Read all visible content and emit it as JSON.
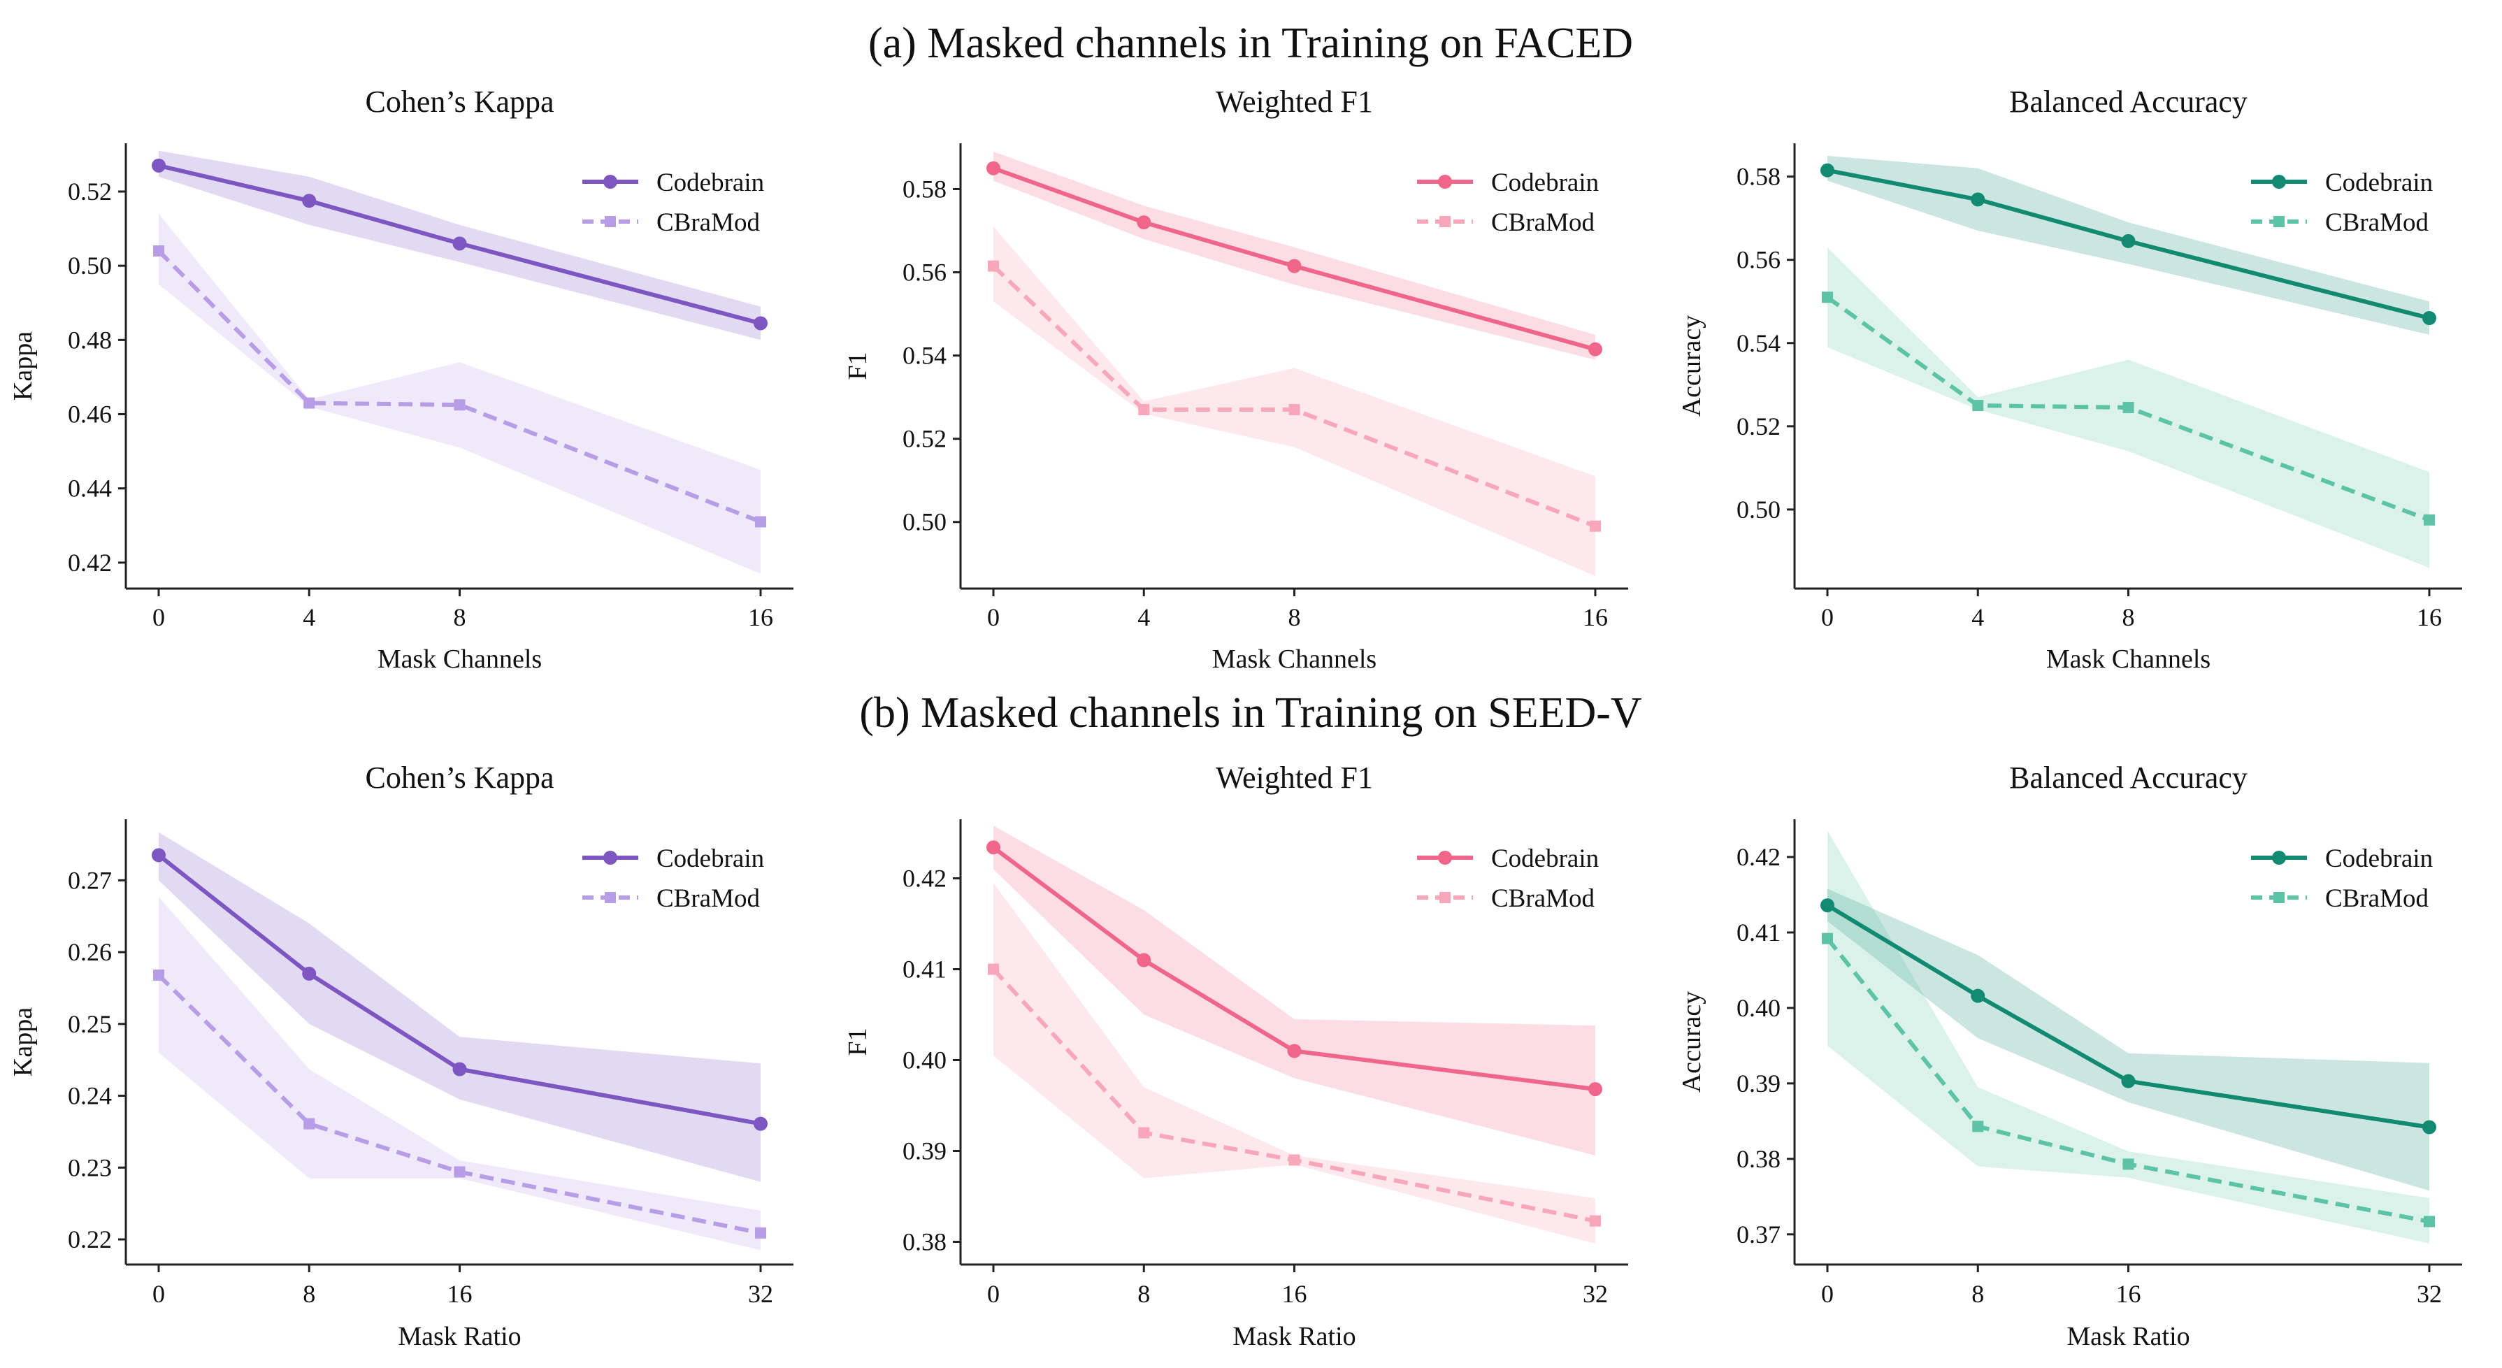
{
  "rows": [
    {
      "title": "(a) Masked channels in Training on FACED",
      "charts": [
        {
          "type": "line",
          "title": "Cohen’s Kappa",
          "xlabel": "Mask Channels",
          "ylabel": "Kappa",
          "x": [
            0,
            4,
            8,
            16
          ],
          "x_ticks": [
            "0",
            "4",
            "8",
            "16"
          ],
          "ylim": [
            0.413,
            0.533
          ],
          "y_ticks": [
            0.42,
            0.44,
            0.46,
            0.48,
            0.5,
            0.52
          ],
          "y_tick_labels": [
            "0.42",
            "0.44",
            "0.46",
            "0.48",
            "0.50",
            "0.52"
          ],
          "legend": "top-right",
          "series": [
            {
              "name": "Codebrain",
              "values": [
                0.527,
                0.5175,
                0.506,
                0.4845
              ],
              "lower": [
                0.524,
                0.511,
                0.501,
                0.48
              ],
              "upper": [
                0.531,
                0.524,
                0.511,
                0.489
              ],
              "color": "#7d56c2",
              "band_color": "#7d56c2",
              "band_opacity": 0.22,
              "style": "solid",
              "marker": "circle"
            },
            {
              "name": "CBraMod",
              "values": [
                0.504,
                0.463,
                0.4625,
                0.431
              ],
              "lower": [
                0.495,
                0.462,
                0.451,
                0.417
              ],
              "upper": [
                0.514,
                0.464,
                0.474,
                0.445
              ],
              "color": "#b69de6",
              "band_color": "#b69de6",
              "band_opacity": 0.22,
              "style": "dashed",
              "marker": "square"
            }
          ]
        },
        {
          "type": "line",
          "title": "Weighted F1",
          "xlabel": "Mask Channels",
          "ylabel": "F1",
          "x": [
            0,
            4,
            8,
            16
          ],
          "x_ticks": [
            "0",
            "4",
            "8",
            "16"
          ],
          "ylim": [
            0.484,
            0.591
          ],
          "y_ticks": [
            0.5,
            0.52,
            0.54,
            0.56,
            0.58
          ],
          "y_tick_labels": [
            "0.50",
            "0.52",
            "0.54",
            "0.56",
            "0.58"
          ],
          "legend": "top-right",
          "series": [
            {
              "name": "Codebrain",
              "values": [
                0.585,
                0.572,
                0.5615,
                0.5415
              ],
              "lower": [
                0.582,
                0.568,
                0.557,
                0.539
              ],
              "upper": [
                0.589,
                0.576,
                0.566,
                0.545
              ],
              "color": "#f0668b",
              "band_color": "#f0668b",
              "band_opacity": 0.22,
              "style": "solid",
              "marker": "circle"
            },
            {
              "name": "CBraMod",
              "values": [
                0.5615,
                0.527,
                0.527,
                0.499
              ],
              "lower": [
                0.553,
                0.526,
                0.518,
                0.487
              ],
              "upper": [
                0.571,
                0.529,
                0.537,
                0.511
              ],
              "color": "#f8a6ba",
              "band_color": "#f8a6ba",
              "band_opacity": 0.26,
              "style": "dashed",
              "marker": "square"
            }
          ]
        },
        {
          "type": "line",
          "title": "Balanced Accuracy",
          "xlabel": "Mask Channels",
          "ylabel": "Accuracy",
          "x": [
            0,
            4,
            8,
            16
          ],
          "x_ticks": [
            "0",
            "4",
            "8",
            "16"
          ],
          "ylim": [
            0.481,
            0.588
          ],
          "y_ticks": [
            0.5,
            0.52,
            0.54,
            0.56,
            0.58
          ],
          "y_tick_labels": [
            "0.50",
            "0.52",
            "0.54",
            "0.56",
            "0.58"
          ],
          "legend": "top-right",
          "series": [
            {
              "name": "Codebrain",
              "values": [
                0.5815,
                0.5745,
                0.5645,
                0.546
              ],
              "lower": [
                0.579,
                0.567,
                0.559,
                0.542
              ],
              "upper": [
                0.585,
                0.582,
                0.569,
                0.55
              ],
              "color": "#128a72",
              "band_color": "#128a72",
              "band_opacity": 0.22,
              "style": "solid",
              "marker": "circle"
            },
            {
              "name": "CBraMod",
              "values": [
                0.551,
                0.525,
                0.5245,
                0.4975
              ],
              "lower": [
                0.539,
                0.524,
                0.514,
                0.486
              ],
              "upper": [
                0.563,
                0.527,
                0.536,
                0.509
              ],
              "color": "#5cc3a6",
              "band_color": "#5cc3a6",
              "band_opacity": 0.22,
              "style": "dashed",
              "marker": "square"
            }
          ]
        }
      ]
    },
    {
      "title": "(b) Masked channels in Training on SEED-V",
      "charts": [
        {
          "type": "line",
          "title": "Cohen’s Kappa",
          "xlabel": "Mask Ratio",
          "ylabel": "Kappa",
          "x": [
            0,
            8,
            16,
            32
          ],
          "x_ticks": [
            "0",
            "8",
            "16",
            "32"
          ],
          "ylim": [
            0.2165,
            0.2785
          ],
          "y_ticks": [
            0.22,
            0.23,
            0.24,
            0.25,
            0.26,
            0.27
          ],
          "y_tick_labels": [
            "0.22",
            "0.23",
            "0.24",
            "0.25",
            "0.26",
            "0.27"
          ],
          "legend": "top-right",
          "series": [
            {
              "name": "Codebrain",
              "values": [
                0.2735,
                0.257,
                0.2437,
                0.2361
              ],
              "lower": [
                0.27,
                0.25,
                0.2395,
                0.228
              ],
              "upper": [
                0.2767,
                0.264,
                0.2482,
                0.2445
              ],
              "color": "#7d56c2",
              "band_color": "#7d56c2",
              "band_opacity": 0.22,
              "style": "solid",
              "marker": "circle"
            },
            {
              "name": "CBraMod",
              "values": [
                0.2568,
                0.2361,
                0.2294,
                0.2209
              ],
              "lower": [
                0.246,
                0.2285,
                0.2285,
                0.2185
              ],
              "upper": [
                0.2677,
                0.2437,
                0.231,
                0.224
              ],
              "color": "#b69de6",
              "band_color": "#b69de6",
              "band_opacity": 0.22,
              "style": "dashed",
              "marker": "square"
            }
          ]
        },
        {
          "type": "line",
          "title": "Weighted F1",
          "xlabel": "Mask Ratio",
          "ylabel": "F1",
          "x": [
            0,
            8,
            16,
            32
          ],
          "x_ticks": [
            "0",
            "8",
            "16",
            "32"
          ],
          "ylim": [
            0.3775,
            0.4265
          ],
          "y_ticks": [
            0.38,
            0.39,
            0.4,
            0.41,
            0.42
          ],
          "y_tick_labels": [
            "0.38",
            "0.39",
            "0.40",
            "0.41",
            "0.42"
          ],
          "legend": "top-right",
          "series": [
            {
              "name": "Codebrain",
              "values": [
                0.4234,
                0.411,
                0.401,
                0.3968
              ],
              "lower": [
                0.421,
                0.405,
                0.398,
                0.3895
              ],
              "upper": [
                0.4258,
                0.4165,
                0.4045,
                0.4038
              ],
              "color": "#f0668b",
              "band_color": "#f0668b",
              "band_opacity": 0.22,
              "style": "solid",
              "marker": "circle"
            },
            {
              "name": "CBraMod",
              "values": [
                0.41,
                0.392,
                0.389,
                0.3823
              ],
              "lower": [
                0.4005,
                0.387,
                0.3885,
                0.3798
              ],
              "upper": [
                0.4195,
                0.397,
                0.3895,
                0.3848
              ],
              "color": "#f8a6ba",
              "band_color": "#f8a6ba",
              "band_opacity": 0.26,
              "style": "dashed",
              "marker": "square"
            }
          ]
        },
        {
          "type": "line",
          "title": "Balanced Accuracy",
          "xlabel": "Mask Ratio",
          "ylabel": "Accuracy",
          "x": [
            0,
            8,
            16,
            32
          ],
          "x_ticks": [
            "0",
            "8",
            "16",
            "32"
          ],
          "ylim": [
            0.366,
            0.425
          ],
          "y_ticks": [
            0.37,
            0.38,
            0.39,
            0.4,
            0.41,
            0.42
          ],
          "y_tick_labels": [
            "0.37",
            "0.38",
            "0.39",
            "0.40",
            "0.41",
            "0.42"
          ],
          "legend": "top-right",
          "series": [
            {
              "name": "Codebrain",
              "values": [
                0.4136,
                0.4016,
                0.3903,
                0.3842
              ],
              "lower": [
                0.4115,
                0.396,
                0.3875,
                0.3758
              ],
              "upper": [
                0.4158,
                0.407,
                0.394,
                0.3927
              ],
              "color": "#128a72",
              "band_color": "#128a72",
              "band_opacity": 0.22,
              "style": "solid",
              "marker": "circle"
            },
            {
              "name": "CBraMod",
              "values": [
                0.4092,
                0.3843,
                0.3793,
                0.3717
              ],
              "lower": [
                0.395,
                0.379,
                0.3775,
                0.3688
              ],
              "upper": [
                0.4235,
                0.3895,
                0.381,
                0.3748
              ],
              "color": "#5cc3a6",
              "band_color": "#5cc3a6",
              "band_opacity": 0.22,
              "style": "dashed",
              "marker": "square"
            }
          ]
        }
      ]
    }
  ]
}
